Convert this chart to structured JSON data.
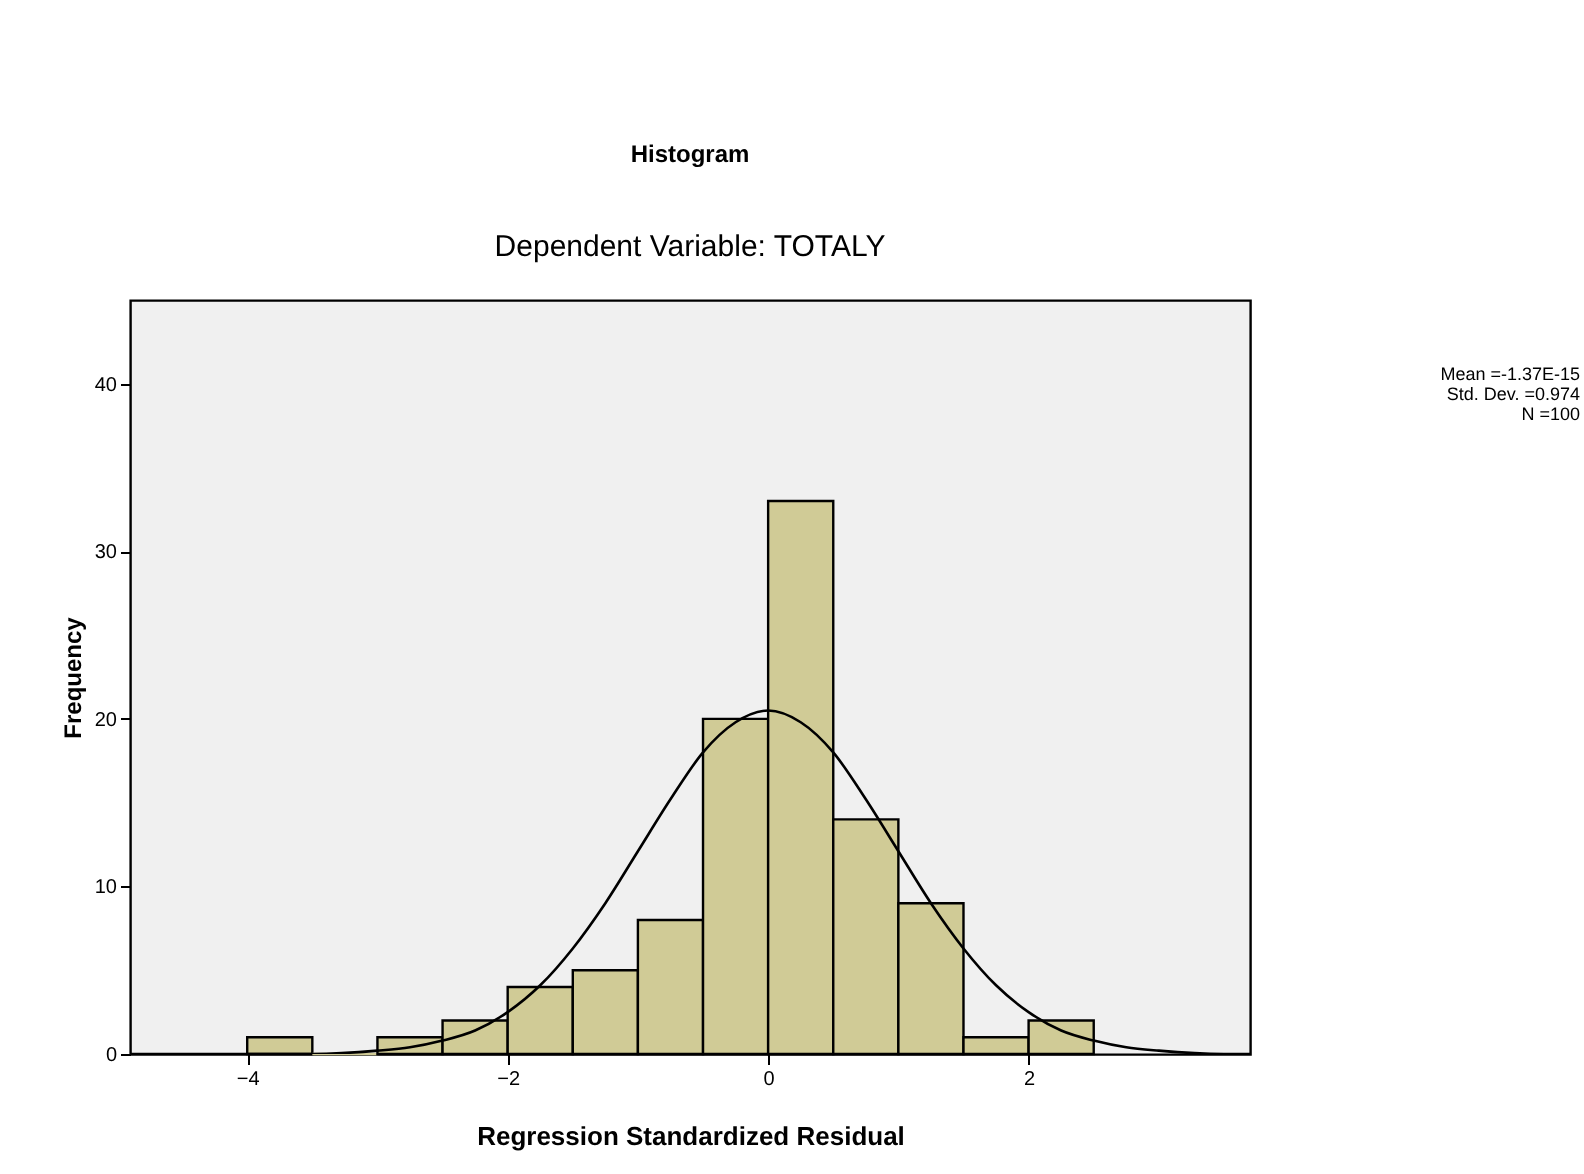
{
  "chart_data": {
    "type": "histogram",
    "title": "Histogram",
    "subtitle": "Dependent Variable: TOTALY",
    "xlabel": "Regression Standardized Residual",
    "ylabel": "Frequency",
    "bins": [
      -4,
      -3.5,
      -3,
      -2.5,
      -2,
      -1.5,
      -1,
      -0.5,
      0,
      0.5,
      1,
      1.5,
      2,
      2.5
    ],
    "values": [
      1,
      0,
      1,
      2,
      4,
      5,
      8,
      20,
      33,
      14,
      9,
      1,
      2
    ],
    "color": "#d0cb96",
    "series": [
      {
        "type": "line",
        "color": "#000000",
        "x": [
          -4.9,
          -4,
          -3.5,
          -3,
          -2.75,
          -2.5,
          -2.25,
          -2,
          -1.75,
          -1.5,
          -1.25,
          -1,
          -0.75,
          -0.5,
          -0.25,
          0,
          0.25,
          0.5,
          0.75,
          1,
          1.25,
          1.5,
          1.75,
          2,
          2.25,
          2.5,
          2.75,
          3,
          3.5,
          3.7
        ],
        "values": [
          0,
          0,
          0,
          0.2,
          0.4,
          0.8,
          1.4,
          2.5,
          4.1,
          6.3,
          9,
          12.1,
          15.2,
          18,
          19.8,
          20.5,
          19.8,
          18,
          15.2,
          12.1,
          9,
          6.3,
          4.1,
          2.5,
          1.4,
          0.8,
          0.4,
          0.2,
          0,
          0
        ]
      }
    ],
    "annotations": [
      "Mean =-1.37E-15",
      "Std. Dev. =0.974",
      "N =100"
    ],
    "xlim": [
      -4.9,
      3.7
    ],
    "xticks": [
      -4,
      -2,
      0,
      2
    ],
    "ylim": [
      0,
      45
    ],
    "yticks": [
      0,
      10,
      20,
      30,
      40
    ]
  }
}
